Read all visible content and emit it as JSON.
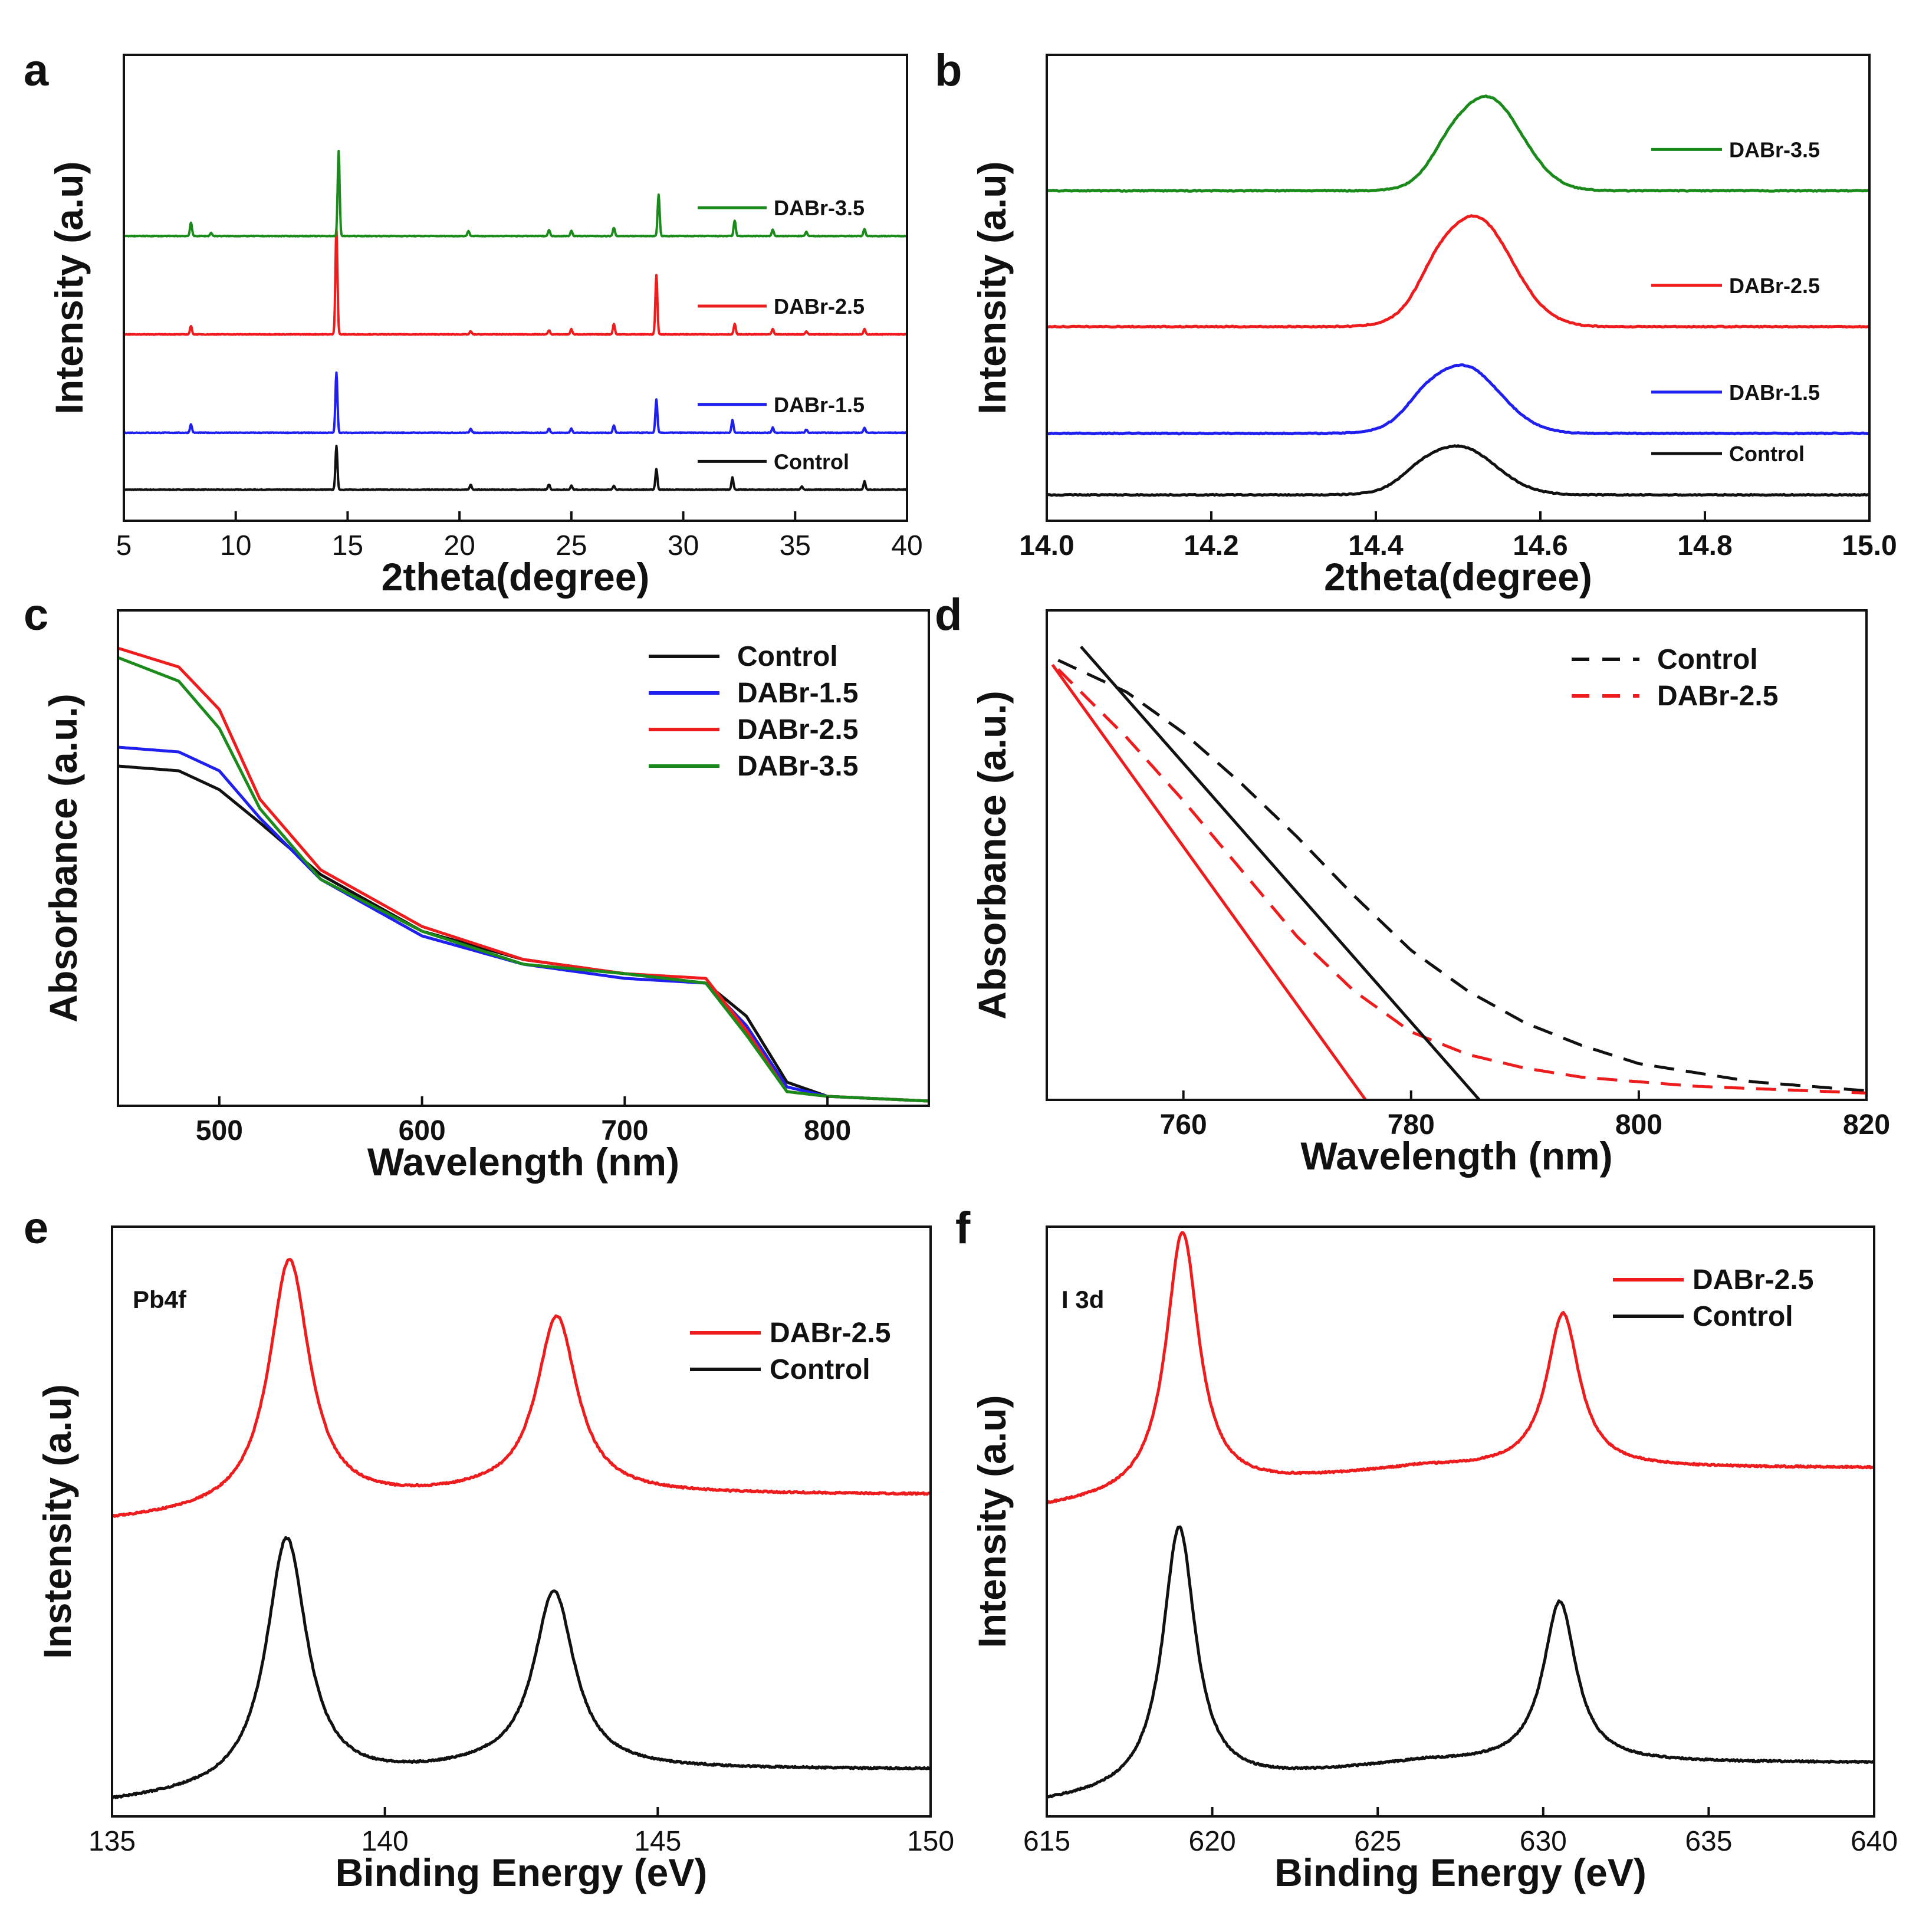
{
  "colors": {
    "Control": "#111111",
    "DABr-1.5": "#1f1ff0",
    "DABr-2.5": "#ee1c1c",
    "DABr-3.5": "#1a8a1a"
  },
  "chart_data": [
    {
      "id": "a",
      "panel_label": "a",
      "type": "line",
      "xlabel": "2theta(degree)",
      "ylabel": "Intensity (a.u)",
      "xlim": [
        5,
        40
      ],
      "xticks": [
        5,
        10,
        15,
        20,
        25,
        30,
        35,
        40
      ],
      "ylim": [
        -0.3,
        4.2
      ],
      "legend": [
        "DABr-3.5",
        "DABr-2.5",
        "DABr-1.5",
        "Control"
      ],
      "legend_position": "inline-right",
      "series": [
        {
          "name": "Control",
          "offset": 0.0,
          "peaks": [
            [
              14.5,
              0.42
            ],
            [
              20.5,
              0.05
            ],
            [
              24.0,
              0.05
            ],
            [
              25.0,
              0.04
            ],
            [
              26.9,
              0.04
            ],
            [
              28.8,
              0.2
            ],
            [
              32.2,
              0.12
            ],
            [
              35.3,
              0.03
            ],
            [
              38.1,
              0.08
            ]
          ]
        },
        {
          "name": "DABr-1.5",
          "offset": 0.55,
          "peaks": [
            [
              8.0,
              0.08
            ],
            [
              14.5,
              0.58
            ],
            [
              20.5,
              0.04
            ],
            [
              24.0,
              0.04
            ],
            [
              25.0,
              0.04
            ],
            [
              26.9,
              0.07
            ],
            [
              28.8,
              0.32
            ],
            [
              32.2,
              0.12
            ],
            [
              34.0,
              0.05
            ],
            [
              35.5,
              0.03
            ],
            [
              38.1,
              0.05
            ]
          ]
        },
        {
          "name": "DABr-2.5",
          "offset": 1.5,
          "peaks": [
            [
              8.0,
              0.08
            ],
            [
              14.5,
              1.03
            ],
            [
              20.5,
              0.03
            ],
            [
              24.0,
              0.04
            ],
            [
              25.0,
              0.05
            ],
            [
              26.9,
              0.1
            ],
            [
              28.8,
              0.57
            ],
            [
              32.3,
              0.1
            ],
            [
              34.0,
              0.05
            ],
            [
              35.5,
              0.03
            ],
            [
              38.1,
              0.05
            ]
          ]
        },
        {
          "name": "DABr-3.5",
          "offset": 2.45,
          "peaks": [
            [
              8.0,
              0.13
            ],
            [
              8.9,
              0.03
            ],
            [
              14.6,
              0.82
            ],
            [
              20.4,
              0.05
            ],
            [
              24.0,
              0.06
            ],
            [
              25.0,
              0.05
            ],
            [
              26.9,
              0.08
            ],
            [
              28.9,
              0.4
            ],
            [
              32.3,
              0.15
            ],
            [
              34.0,
              0.06
            ],
            [
              35.5,
              0.04
            ],
            [
              38.1,
              0.07
            ]
          ]
        }
      ]
    },
    {
      "id": "b",
      "panel_label": "b",
      "type": "line",
      "xlabel": "2theta(degree)",
      "ylabel": "Intensity (a.u)",
      "xlim": [
        14.0,
        15.0
      ],
      "xticks": [
        "14.0",
        "14.2",
        "14.4",
        "14.6",
        "14.8",
        "15.0"
      ],
      "ylim": [
        -0.4,
        6.8
      ],
      "legend": [
        "DABr-3.5",
        "DABr-2.5",
        "DABr-1.5",
        "Control"
      ],
      "legend_position": "inline-right",
      "series": [
        {
          "name": "Control",
          "offset": 0.0,
          "peak_center": 14.5,
          "height": 0.75,
          "width": 0.045
        },
        {
          "name": "DABr-1.5",
          "offset": 0.95,
          "peak_center": 14.505,
          "height": 1.05,
          "width": 0.045
        },
        {
          "name": "DABr-2.5",
          "offset": 2.6,
          "peak_center": 14.52,
          "height": 1.7,
          "width": 0.045
        },
        {
          "name": "DABr-3.5",
          "offset": 4.7,
          "peak_center": 14.535,
          "height": 1.45,
          "width": 0.042
        }
      ]
    },
    {
      "id": "c",
      "panel_label": "c",
      "type": "line",
      "xlabel": "Wavelength (nm)",
      "ylabel": "Absorbance (a.u.)",
      "xlim": [
        450,
        850
      ],
      "xticks": [
        500,
        600,
        700,
        800
      ],
      "ylim": [
        0,
        1.05
      ],
      "legend": [
        "Control",
        "DABr-1.5",
        "DABr-2.5",
        "DABr-3.5"
      ],
      "legend_position": "top-right",
      "series": [
        {
          "name": "Control",
          "x": [
            450,
            480,
            500,
            520,
            550,
            600,
            650,
            700,
            740,
            760,
            780,
            800,
            850
          ],
          "y": [
            0.72,
            0.71,
            0.67,
            0.6,
            0.49,
            0.37,
            0.31,
            0.28,
            0.26,
            0.19,
            0.05,
            0.02,
            0.01
          ]
        },
        {
          "name": "DABr-1.5",
          "x": [
            450,
            480,
            500,
            520,
            550,
            600,
            650,
            700,
            740,
            760,
            780,
            800,
            850
          ],
          "y": [
            0.76,
            0.75,
            0.71,
            0.61,
            0.48,
            0.36,
            0.3,
            0.27,
            0.26,
            0.17,
            0.04,
            0.02,
            0.01
          ]
        },
        {
          "name": "DABr-2.5",
          "x": [
            450,
            480,
            500,
            520,
            550,
            600,
            650,
            700,
            740,
            760,
            780,
            800,
            850
          ],
          "y": [
            0.97,
            0.93,
            0.84,
            0.65,
            0.5,
            0.38,
            0.31,
            0.28,
            0.27,
            0.16,
            0.03,
            0.02,
            0.01
          ]
        },
        {
          "name": "DABr-3.5",
          "x": [
            450,
            480,
            500,
            520,
            550,
            600,
            650,
            700,
            740,
            760,
            780,
            800,
            850
          ],
          "y": [
            0.95,
            0.9,
            0.8,
            0.63,
            0.48,
            0.37,
            0.3,
            0.28,
            0.26,
            0.15,
            0.03,
            0.02,
            0.01
          ]
        }
      ]
    },
    {
      "id": "d",
      "panel_label": "d",
      "type": "line",
      "xlabel": "Wavelength (nm)",
      "ylabel": "Absorbance (a.u.)",
      "xlim": [
        748,
        820
      ],
      "xticks": [
        760,
        780,
        800,
        820
      ],
      "ylim": [
        0,
        1.08
      ],
      "legend": [
        "Control",
        "DABr-2.5"
      ],
      "legend_position": "top-right",
      "series": [
        {
          "name": "Control",
          "style": "dashed",
          "x": [
            749,
            755,
            760,
            765,
            770,
            775,
            780,
            785,
            790,
            795,
            800,
            805,
            810,
            815,
            820
          ],
          "y": [
            0.97,
            0.9,
            0.81,
            0.7,
            0.58,
            0.45,
            0.33,
            0.24,
            0.17,
            0.12,
            0.08,
            0.06,
            0.04,
            0.03,
            0.02
          ]
        },
        {
          "name": "DABr-2.5",
          "style": "dashed",
          "x": [
            749,
            755,
            760,
            765,
            770,
            775,
            780,
            785,
            790,
            795,
            800,
            805,
            810,
            815,
            820
          ],
          "y": [
            0.95,
            0.8,
            0.66,
            0.51,
            0.36,
            0.24,
            0.15,
            0.1,
            0.07,
            0.05,
            0.04,
            0.03,
            0.025,
            0.02,
            0.015
          ]
        },
        {
          "name": "Control fit",
          "style": "solid",
          "legend": false,
          "color_key": "Control",
          "x": [
            751,
            786
          ],
          "y": [
            1.0,
            0.0
          ]
        },
        {
          "name": "DABr-2.5 fit",
          "style": "solid",
          "legend": false,
          "color_key": "DABr-2.5",
          "x": [
            748.5,
            776
          ],
          "y": [
            0.96,
            0.0
          ]
        }
      ]
    },
    {
      "id": "e",
      "panel_label": "e",
      "type": "line",
      "xlabel": "Binding Energy (eV)",
      "ylabel": "Instensity (a.u)",
      "annotation": "Pb4f",
      "xlim": [
        135,
        150
      ],
      "xticks": [
        135,
        140,
        145,
        150
      ],
      "ylim": [
        -0.1,
        4.3
      ],
      "legend": [
        "DABr-2.5",
        "Control"
      ],
      "legend_position": "top-right",
      "series": [
        {
          "name": "Control",
          "offset": 0.0,
          "baseline": [
            0.0,
            0.25
          ],
          "peaks": [
            [
              138.2,
              1.85,
              0.45
            ],
            [
              143.1,
              1.32,
              0.45
            ]
          ]
        },
        {
          "name": "DABr-2.5",
          "offset": 2.1,
          "baseline": [
            0.0,
            0.2
          ],
          "peaks": [
            [
              138.25,
              1.85,
              0.45
            ],
            [
              143.15,
              1.32,
              0.45
            ]
          ]
        }
      ]
    },
    {
      "id": "f",
      "panel_label": "f",
      "type": "line",
      "xlabel": "Binding Energy (eV)",
      "ylabel": "Intensity (a.u)",
      "annotation": "I 3d",
      "xlim": [
        615,
        640
      ],
      "xticks": [
        615,
        620,
        625,
        630,
        635,
        640
      ],
      "ylim": [
        -0.1,
        4.3
      ],
      "legend": [
        "DABr-2.5",
        "Control"
      ],
      "legend_position": "top-right",
      "series": [
        {
          "name": "Control",
          "offset": 0.0,
          "baseline": [
            0.0,
            0.3
          ],
          "peaks": [
            [
              619.0,
              1.95,
              0.6
            ],
            [
              630.5,
              1.2,
              0.6
            ]
          ]
        },
        {
          "name": "DABr-2.5",
          "offset": 2.2,
          "baseline": [
            0.0,
            0.3
          ],
          "peaks": [
            [
              619.1,
              1.95,
              0.6
            ],
            [
              630.6,
              1.15,
              0.6
            ]
          ]
        }
      ]
    }
  ]
}
